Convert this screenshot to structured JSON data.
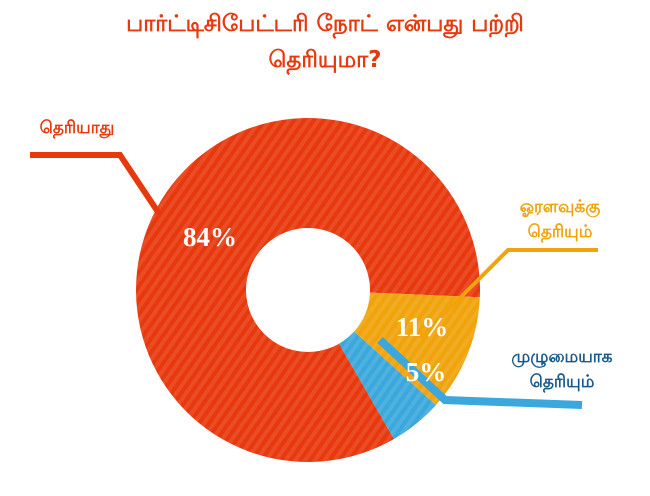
{
  "chart_data": {
    "type": "donut",
    "title": "பார்ட்டிசிபேட்டரி நோட் என்பது பற்றி தெரியுமா?",
    "categories": [
      "தெரியாது",
      "ஓரளவுக்கு தெரியும்",
      "முழுமையாக தெரியும்"
    ],
    "values": [
      84,
      11,
      5
    ],
    "value_labels": [
      "84%",
      "11%",
      "5%"
    ],
    "colors": [
      "#e8380d",
      "#f0a30a",
      "#3aa8dc"
    ]
  }
}
